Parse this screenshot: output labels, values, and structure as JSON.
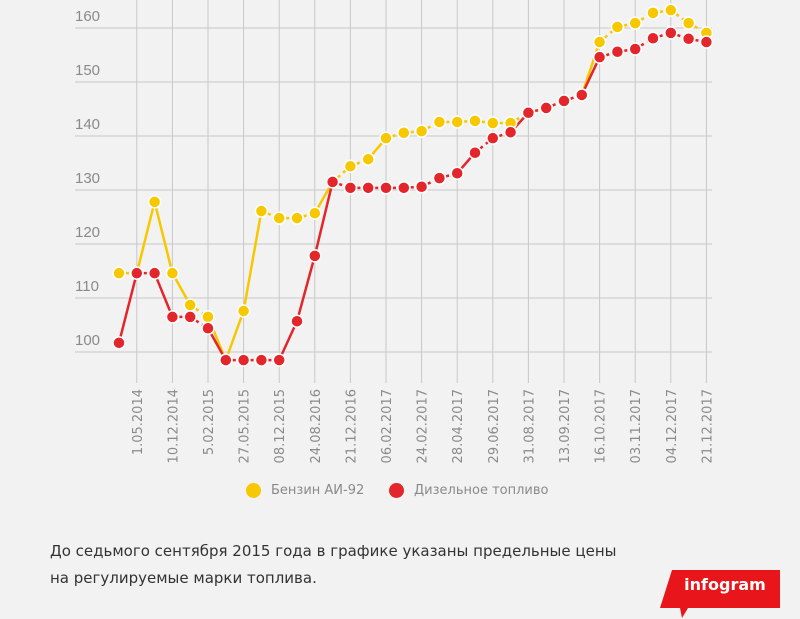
{
  "chart_data": {
    "type": "line",
    "title": "",
    "xlabel": "",
    "ylabel": "",
    "ylim": [
      97.5,
      165.5
    ],
    "yticks": [
      100,
      110,
      120,
      130,
      140,
      150,
      160
    ],
    "grid": true,
    "legend_position": "bottom",
    "x_tick_labels": [
      "1.05.2014",
      "10.12.2014",
      "5.02.2015",
      "27.05.2015",
      "08.12.2015",
      "24.08.2016",
      "21.12.2016",
      "06.02.2017",
      "24.02.2017",
      "28.04.2017",
      "29.06.2017",
      "31.08.2017",
      "13.09.2017",
      "16.10.2017",
      "03.11.2017",
      "04.12.2017",
      "21.12.2017"
    ],
    "series": [
      {
        "name": "Бензин АИ-92",
        "color": "#f7c800",
        "values": [
          114.6,
          114.6,
          127.8,
          114.6,
          108.7,
          106.5,
          98.5,
          107.6,
          126.1,
          124.8,
          124.8,
          125.7,
          131.5,
          134.4,
          135.7,
          139.6,
          140.6,
          140.9,
          142.6,
          142.6,
          142.8,
          142.4,
          142.4,
          144.3,
          145.2,
          146.5,
          147.6,
          157.4,
          160.2,
          160.9,
          162.8,
          163.3,
          160.9,
          159.1
        ]
      },
      {
        "name": "Дизельное топливо",
        "color": "#e3262b",
        "values": [
          101.7,
          114.6,
          114.6,
          106.5,
          106.5,
          104.4,
          98.5,
          98.5,
          98.5,
          98.5,
          105.7,
          117.8,
          131.5,
          130.4,
          130.4,
          130.4,
          130.4,
          130.6,
          132.2,
          133.1,
          136.9,
          139.6,
          140.7,
          144.3,
          145.2,
          146.5,
          147.6,
          154.6,
          155.6,
          156.1,
          158.1,
          159.1,
          158.0,
          157.4
        ]
      }
    ]
  },
  "footer": {
    "line1": "До седьмого сентября 2015 года в графике указаны предельные цены",
    "line2": "на регулируемые марки топлива."
  },
  "badge": {
    "label": "infogram",
    "color": "#e8151b"
  }
}
